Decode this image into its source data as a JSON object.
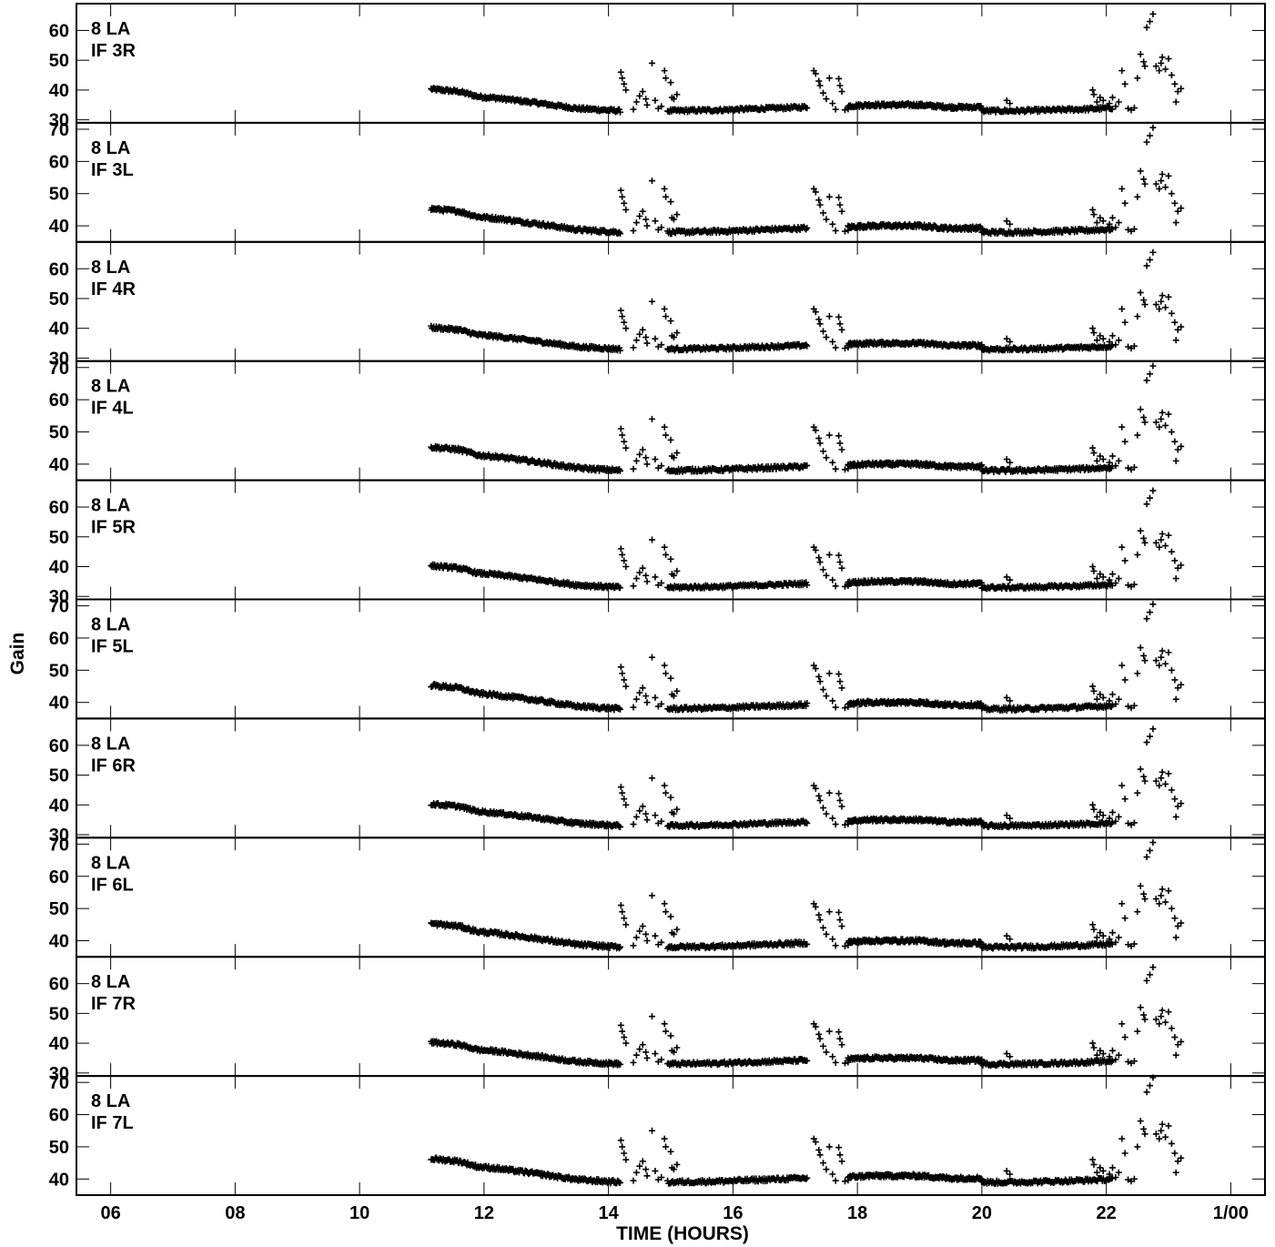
{
  "chart_data": {
    "type": "scatter",
    "marker": "plus",
    "xlabel": "TIME (HOURS)",
    "ylabel": "Gain",
    "xlim": [
      5.45,
      24.55
    ],
    "x_ticks": [
      {
        "value": 6,
        "label": "06"
      },
      {
        "value": 8,
        "label": "08"
      },
      {
        "value": 10,
        "label": "10"
      },
      {
        "value": 12,
        "label": "12"
      },
      {
        "value": 14,
        "label": "14"
      },
      {
        "value": 16,
        "label": "16"
      },
      {
        "value": 18,
        "label": "18"
      },
      {
        "value": 20,
        "label": "20"
      },
      {
        "value": 22,
        "label": "22"
      },
      {
        "value": 24,
        "label": "1/00"
      }
    ],
    "panels": [
      {
        "antenna": "8 LA",
        "if": "IF 3R",
        "ylim": [
          29,
          69
        ],
        "yticks": [
          30,
          40,
          50,
          60
        ],
        "base": 33
      },
      {
        "antenna": "8 LA",
        "if": "IF 3L",
        "ylim": [
          35,
          72
        ],
        "yticks": [
          40,
          50,
          60,
          70
        ],
        "base": 38
      },
      {
        "antenna": "8 LA",
        "if": "IF 4R",
        "ylim": [
          29,
          69
        ],
        "yticks": [
          30,
          40,
          50,
          60
        ],
        "base": 33
      },
      {
        "antenna": "8 LA",
        "if": "IF 4L",
        "ylim": [
          35,
          72
        ],
        "yticks": [
          40,
          50,
          60,
          70
        ],
        "base": 38
      },
      {
        "antenna": "8 LA",
        "if": "IF 5R",
        "ylim": [
          29,
          69
        ],
        "yticks": [
          30,
          40,
          50,
          60
        ],
        "base": 33
      },
      {
        "antenna": "8 LA",
        "if": "IF 5L",
        "ylim": [
          35,
          72
        ],
        "yticks": [
          40,
          50,
          60,
          70
        ],
        "base": 38
      },
      {
        "antenna": "8 LA",
        "if": "IF 6R",
        "ylim": [
          29,
          69
        ],
        "yticks": [
          30,
          40,
          50,
          60
        ],
        "base": 33
      },
      {
        "antenna": "8 LA",
        "if": "IF 6L",
        "ylim": [
          35,
          72
        ],
        "yticks": [
          40,
          50,
          60,
          70
        ],
        "base": 38
      },
      {
        "antenna": "8 LA",
        "if": "IF 7R",
        "ylim": [
          29,
          69
        ],
        "yticks": [
          30,
          40,
          50,
          60
        ],
        "base": 33
      },
      {
        "antenna": "8 LA",
        "if": "IF 7L",
        "ylim": [
          35,
          72
        ],
        "yticks": [
          40,
          50,
          60,
          70
        ],
        "base": 39
      }
    ],
    "profile_offsets": {
      "x": [
        11.15,
        11.6,
        11.9,
        12.2,
        12.8,
        13.5,
        14.2
      ],
      "y": [
        7.3,
        6.5,
        4.8,
        4.3,
        2.8,
        0.8,
        0.0
      ]
    },
    "profile_offsets_2": {
      "x": [
        14.95,
        15.8,
        16.5,
        17.2
      ],
      "y": [
        0.0,
        0.3,
        0.8,
        1.3
      ]
    },
    "profile_offsets_3": {
      "x": [
        17.85,
        18.2,
        19.0,
        19.5,
        20.0
      ],
      "y": [
        1.6,
        2.0,
        2.0,
        1.2,
        1.3
      ]
    },
    "profile_offsets_4": {
      "x": [
        20.0,
        20.5,
        21.0,
        21.7,
        22.1
      ],
      "y": [
        0.0,
        0.0,
        0.2,
        0.6,
        1.0
      ]
    },
    "outliers_offsets": [
      [
        14.2,
        13.0
      ],
      [
        14.22,
        11.0
      ],
      [
        14.25,
        9.0
      ],
      [
        14.28,
        7.0
      ],
      [
        14.4,
        0.5
      ],
      [
        14.45,
        3.0
      ],
      [
        14.5,
        5.0
      ],
      [
        14.55,
        6.5
      ],
      [
        14.6,
        4.0
      ],
      [
        14.62,
        2.0
      ],
      [
        14.7,
        16.0
      ],
      [
        14.75,
        3.5
      ],
      [
        14.8,
        0.8
      ],
      [
        14.85,
        1.5
      ],
      [
        14.9,
        13.5
      ],
      [
        14.92,
        11.0
      ],
      [
        15.0,
        9.5
      ],
      [
        15.02,
        4.5
      ],
      [
        15.05,
        4.0
      ],
      [
        15.1,
        5.5
      ],
      [
        17.3,
        13.5
      ],
      [
        17.33,
        12.5
      ],
      [
        17.38,
        10.0
      ],
      [
        17.4,
        8.5
      ],
      [
        17.45,
        6.0
      ],
      [
        17.5,
        4.0
      ],
      [
        17.55,
        11.0
      ],
      [
        17.6,
        2.5
      ],
      [
        17.65,
        0.5
      ],
      [
        17.7,
        10.8
      ],
      [
        17.72,
        8.5
      ],
      [
        17.75,
        6.5
      ],
      [
        17.8,
        0.3
      ],
      [
        17.85,
        0.6
      ],
      [
        20.4,
        3.5
      ],
      [
        20.45,
        2.5
      ],
      [
        21.78,
        7.0
      ],
      [
        21.8,
        5.5
      ],
      [
        21.85,
        3.0
      ],
      [
        21.9,
        4.5
      ],
      [
        21.95,
        3.5
      ],
      [
        22.05,
        2.5
      ],
      [
        22.1,
        4.5
      ],
      [
        22.15,
        1.5
      ],
      [
        22.2,
        3.0
      ],
      [
        22.25,
        13.5
      ],
      [
        22.3,
        9.0
      ],
      [
        22.35,
        0.8
      ],
      [
        22.4,
        0.3
      ],
      [
        22.45,
        1.0
      ],
      [
        22.5,
        11.0
      ],
      [
        22.55,
        19.0
      ],
      [
        22.6,
        16.5
      ],
      [
        22.62,
        15.0
      ],
      [
        22.65,
        28.0
      ],
      [
        22.7,
        30.0
      ],
      [
        22.75,
        32.5
      ],
      [
        22.8,
        15.0
      ],
      [
        22.85,
        13.5
      ],
      [
        22.88,
        16.0
      ],
      [
        22.9,
        18.0
      ],
      [
        22.95,
        14.0
      ],
      [
        23.0,
        17.5
      ],
      [
        23.05,
        12.0
      ],
      [
        23.1,
        9.0
      ],
      [
        23.12,
        3.0
      ],
      [
        23.15,
        6.5
      ],
      [
        23.2,
        7.5
      ]
    ]
  }
}
